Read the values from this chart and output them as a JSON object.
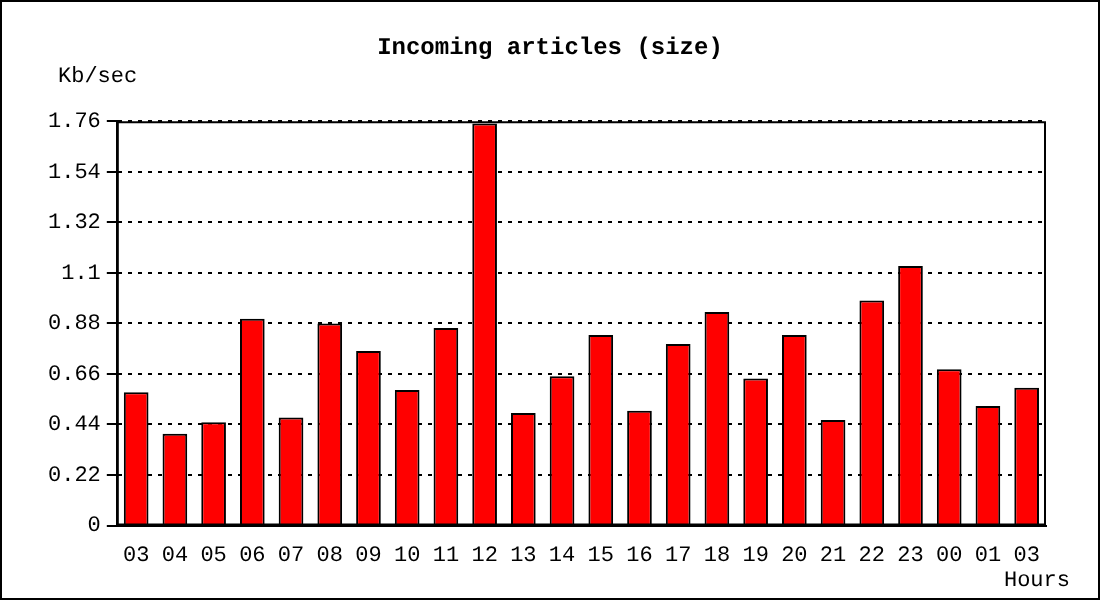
{
  "chart_data": {
    "type": "bar",
    "title": "Incoming articles (size)",
    "xlabel": "Hours",
    "ylabel": "Kb/sec",
    "categories": [
      "03",
      "04",
      "05",
      "06",
      "07",
      "08",
      "09",
      "10",
      "11",
      "12",
      "13",
      "14",
      "15",
      "16",
      "17",
      "18",
      "19",
      "20",
      "21",
      "22",
      "23",
      "00",
      "01",
      "03"
    ],
    "values": [
      0.58,
      0.4,
      0.45,
      0.9,
      0.47,
      0.88,
      0.76,
      0.59,
      0.86,
      1.75,
      0.49,
      0.65,
      0.83,
      0.5,
      0.79,
      0.93,
      0.64,
      0.83,
      0.46,
      0.98,
      1.13,
      0.68,
      0.52,
      0.6
    ],
    "color": "#ff0000",
    "ylim": [
      0,
      1.76
    ],
    "yticks": [
      0,
      0.22,
      0.44,
      0.66,
      0.88,
      1.1,
      1.32,
      1.54,
      1.76
    ],
    "grid": "y"
  }
}
